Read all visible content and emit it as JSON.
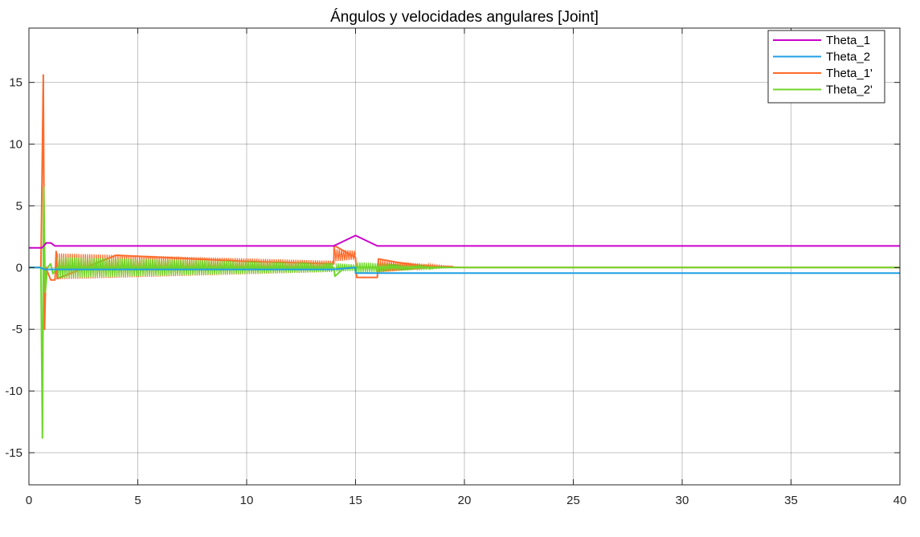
{
  "chart_data": {
    "type": "line",
    "title": "Ángulos y velocidades angulares [Joint]",
    "xlabel": "",
    "ylabel": "",
    "xlim": [
      0,
      40
    ],
    "ylim": [
      -17.6,
      19.4
    ],
    "xticks": [
      0,
      5,
      10,
      15,
      20,
      25,
      30,
      35,
      40
    ],
    "yticks": [
      -15,
      -10,
      -5,
      0,
      5,
      10,
      15
    ],
    "grid": true,
    "legend_position": "top-right",
    "series": [
      {
        "name": "Theta_1",
        "color": "#cc00cc",
        "x": [
          0,
          0.6,
          0.8,
          1.0,
          1.2,
          14.0,
          15.0,
          16.0,
          40
        ],
        "y": [
          1.6,
          1.6,
          2.0,
          2.0,
          1.75,
          1.75,
          2.6,
          1.75,
          1.75
        ]
      },
      {
        "name": "Theta_2",
        "color": "#1e9fe6",
        "x": [
          0,
          0.5,
          0.7,
          14.0,
          15.0,
          15.0,
          40
        ],
        "y": [
          0.0,
          0.0,
          -0.15,
          -0.15,
          0.0,
          -0.45,
          -0.45
        ]
      },
      {
        "name": "Theta_1'",
        "color": "#ff6a2a",
        "x": [
          0,
          0.55,
          0.66,
          0.72,
          0.78,
          1.0,
          1.2,
          1.25,
          1.3,
          4,
          7,
          10,
          14.0,
          14.02,
          14.5,
          15.0,
          15.05,
          16.0,
          16.05,
          17,
          18,
          19,
          20,
          40
        ],
        "y": [
          0.0,
          0.0,
          15.6,
          -5.0,
          0.0,
          -1.0,
          -1.0,
          1.3,
          -0.9,
          1.0,
          0.75,
          0.5,
          0.3,
          1.8,
          1.3,
          0.8,
          -0.8,
          -0.8,
          0.7,
          0.4,
          0.15,
          0.05,
          0.0,
          0.0
        ],
        "oscillation_band": [
          {
            "x_start": 1.3,
            "x_end": 14.0,
            "amp_start": 1.05,
            "amp_end": 0.45,
            "center": 0.1
          },
          {
            "x_start": 14.05,
            "x_end": 15.0,
            "amp_start": 0.5,
            "amp_end": 0.35,
            "center": 1.0
          },
          {
            "x_start": 16.05,
            "x_end": 19.5,
            "amp_start": 0.5,
            "amp_end": 0.0,
            "center": 0.1
          }
        ]
      },
      {
        "name": "Theta_2'",
        "color": "#6fd62a",
        "x": [
          0,
          0.55,
          0.62,
          0.68,
          0.75,
          0.85,
          1.0,
          1.1,
          1.3,
          4,
          7,
          10,
          14.0,
          14.05,
          14.5,
          15.0,
          16.0,
          17,
          18,
          19,
          20,
          40
        ],
        "y": [
          0.0,
          0.0,
          -13.8,
          6.5,
          -2.0,
          0.0,
          0.3,
          -0.5,
          0.0,
          0.0,
          0.0,
          0.0,
          0.0,
          -0.7,
          0.0,
          0.0,
          0.0,
          0.0,
          0.0,
          0.0,
          0.0,
          0.0
        ],
        "oscillation_band": [
          {
            "x_start": 1.3,
            "x_end": 14.0,
            "amp_start": 0.85,
            "amp_end": 0.35,
            "center": 0.0
          },
          {
            "x_start": 14.1,
            "x_end": 15.0,
            "amp_start": 0.35,
            "amp_end": 0.25,
            "center": 0.0
          },
          {
            "x_start": 15.0,
            "x_end": 19.5,
            "amp_start": 0.45,
            "amp_end": 0.0,
            "center": 0.0
          }
        ]
      }
    ]
  }
}
